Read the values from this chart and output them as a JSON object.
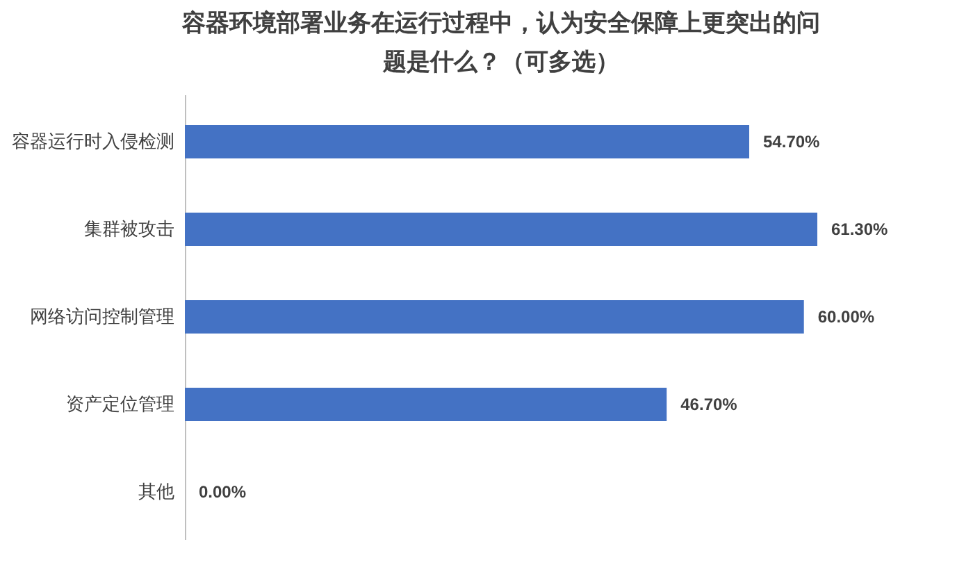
{
  "chart_data": {
    "type": "bar",
    "orientation": "horizontal",
    "title": "容器环境部署业务在运行过程中，认为安全保障上更突出的问题是什么？（可多选）",
    "categories": [
      "容器运行时入侵检测",
      "集群被攻击",
      "网络访问控制管理",
      "资产定位管理",
      "其他"
    ],
    "values": [
      54.7,
      61.3,
      60.0,
      46.7,
      0.0
    ],
    "value_labels": [
      "54.70%",
      "61.30%",
      "60.00%",
      "46.70%",
      "0.00%"
    ],
    "color": "#4472c4",
    "grid": false
  }
}
